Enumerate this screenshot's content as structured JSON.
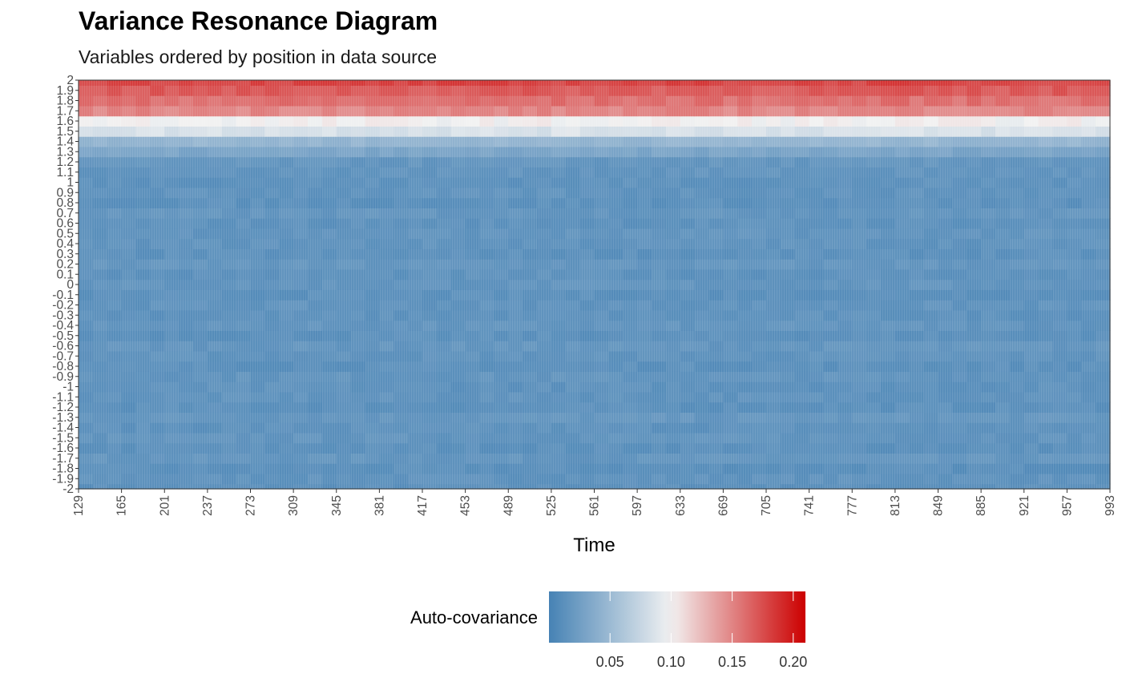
{
  "chart_data": {
    "type": "heatmap",
    "title": "Variance Resonance Diagram",
    "subtitle": "Variables ordered by position in data source",
    "xlabel": "Time",
    "ylabel": "",
    "x_range": [
      129,
      993
    ],
    "x_ticks": [
      "129",
      "165",
      "201",
      "237",
      "273",
      "309",
      "345",
      "381",
      "417",
      "453",
      "489",
      "525",
      "561",
      "597",
      "633",
      "669",
      "705",
      "741",
      "777",
      "813",
      "849",
      "885",
      "921",
      "957",
      "993"
    ],
    "y_range": [
      -2,
      2
    ],
    "y_ticks": [
      "-2",
      "-1.9",
      "-1.8",
      "-1.7",
      "-1.6",
      "-1.5",
      "-1.4",
      "-1.3",
      "-1.2",
      "-1.1",
      "-1",
      "-0.9",
      "-0.8",
      "-0.7",
      "-0.6",
      "-0.5",
      "-0.4",
      "-0.3",
      "-0.2",
      "-0.1",
      "0",
      "0.1",
      "0.2",
      "0.3",
      "0.4",
      "0.5",
      "0.6",
      "0.7",
      "0.8",
      "0.9",
      "1",
      "1.1",
      "1.2",
      "1.3",
      "1.4",
      "1.5",
      "1.6",
      "1.7",
      "1.8",
      "1.9",
      "2"
    ],
    "row_mean_values": [
      0.012,
      0.014,
      0.011,
      0.016,
      0.012,
      0.015,
      0.013,
      0.017,
      0.012,
      0.014,
      0.013,
      0.015,
      0.012,
      0.014,
      0.016,
      0.012,
      0.015,
      0.013,
      0.014,
      0.012,
      0.015,
      0.013,
      0.016,
      0.012,
      0.014,
      0.015,
      0.013,
      0.016,
      0.012,
      0.014,
      0.013,
      0.015,
      0.016,
      0.03,
      0.045,
      0.085,
      0.1,
      0.15,
      0.16,
      0.17,
      0.18
    ],
    "legend": {
      "title": "Auto-covariance",
      "position": "bottom",
      "range": [
        0.0,
        0.21
      ],
      "ticks": [
        "0.05",
        "0.10",
        "0.15",
        "0.20"
      ],
      "tick_values": [
        0.05,
        0.1,
        0.15,
        0.2
      ]
    },
    "colors": {
      "low": "#4682b4",
      "mid": "#f2f2f2",
      "high": "#cc0000",
      "midpoint": 0.1
    },
    "grid": false
  }
}
